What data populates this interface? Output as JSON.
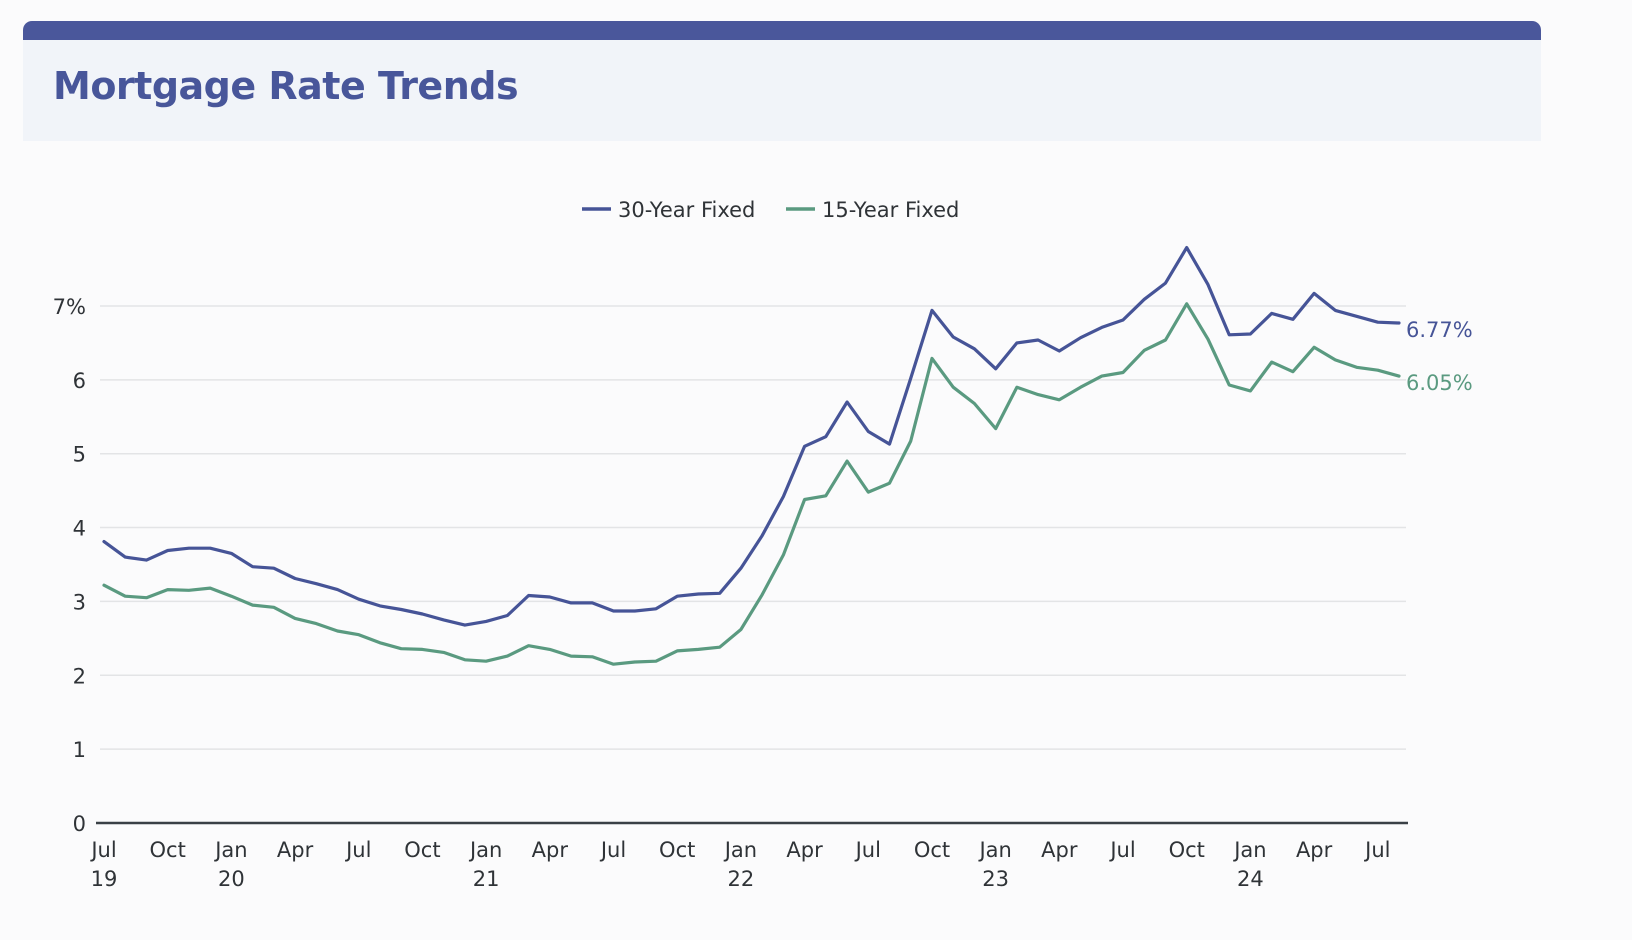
{
  "header": {
    "title": "Mortgage Rate Trends"
  },
  "colors": {
    "accent": "#4a579b",
    "series_30": "#465497",
    "series_15": "#5a9a80",
    "grid": "#e3e4e6",
    "axis": "#3a4046"
  },
  "chart_data": {
    "type": "line",
    "title": "Mortgage Rate Trends",
    "xlabel": "",
    "ylabel": "",
    "ylim": [
      0,
      7.8
    ],
    "yticks": [
      0,
      1,
      2,
      3,
      4,
      5,
      6,
      7
    ],
    "ytick_labels": [
      "0",
      "1",
      "2",
      "3",
      "4",
      "5",
      "6",
      "7%"
    ],
    "grid": true,
    "legend_position": "top-center",
    "x": [
      "2019-07",
      "2019-08",
      "2019-09",
      "2019-10",
      "2019-11",
      "2019-12",
      "2020-01",
      "2020-02",
      "2020-03",
      "2020-04",
      "2020-05",
      "2020-06",
      "2020-07",
      "2020-08",
      "2020-09",
      "2020-10",
      "2020-11",
      "2020-12",
      "2021-01",
      "2021-02",
      "2021-03",
      "2021-04",
      "2021-05",
      "2021-06",
      "2021-07",
      "2021-08",
      "2021-09",
      "2021-10",
      "2021-11",
      "2021-12",
      "2022-01",
      "2022-02",
      "2022-03",
      "2022-04",
      "2022-05",
      "2022-06",
      "2022-07",
      "2022-08",
      "2022-09",
      "2022-10",
      "2022-11",
      "2022-12",
      "2023-01",
      "2023-02",
      "2023-03",
      "2023-04",
      "2023-05",
      "2023-06",
      "2023-07",
      "2023-08",
      "2023-09",
      "2023-10",
      "2023-11",
      "2023-12",
      "2024-01",
      "2024-02",
      "2024-03",
      "2024-04",
      "2024-05",
      "2024-06",
      "2024-07",
      "2024-08"
    ],
    "xtick_labels": [
      {
        "month": "Jul",
        "year": "19"
      },
      {
        "month": "Oct",
        "year": ""
      },
      {
        "month": "Jan",
        "year": "20"
      },
      {
        "month": "Apr",
        "year": ""
      },
      {
        "month": "Jul",
        "year": ""
      },
      {
        "month": "Oct",
        "year": ""
      },
      {
        "month": "Jan",
        "year": "21"
      },
      {
        "month": "Apr",
        "year": ""
      },
      {
        "month": "Jul",
        "year": ""
      },
      {
        "month": "Oct",
        "year": ""
      },
      {
        "month": "Jan",
        "year": "22"
      },
      {
        "month": "Apr",
        "year": ""
      },
      {
        "month": "Jul",
        "year": ""
      },
      {
        "month": "Oct",
        "year": ""
      },
      {
        "month": "Jan",
        "year": "23"
      },
      {
        "month": "Apr",
        "year": ""
      },
      {
        "month": "Jul",
        "year": ""
      },
      {
        "month": "Oct",
        "year": ""
      },
      {
        "month": "Jan",
        "year": "24"
      },
      {
        "month": "Apr",
        "year": ""
      },
      {
        "month": "Jul",
        "year": ""
      }
    ],
    "series": [
      {
        "name": "30-Year Fixed",
        "end_label": "6.77%",
        "values": [
          3.81,
          3.6,
          3.56,
          3.69,
          3.72,
          3.72,
          3.65,
          3.47,
          3.45,
          3.31,
          3.24,
          3.16,
          3.03,
          2.94,
          2.89,
          2.83,
          2.75,
          2.68,
          2.73,
          2.81,
          3.08,
          3.06,
          2.98,
          2.98,
          2.87,
          2.87,
          2.9,
          3.07,
          3.1,
          3.11,
          3.45,
          3.89,
          4.42,
          5.1,
          5.23,
          5.7,
          5.3,
          5.13,
          6.02,
          6.94,
          6.58,
          6.42,
          6.15,
          6.5,
          6.54,
          6.39,
          6.57,
          6.71,
          6.81,
          7.09,
          7.31,
          7.79,
          7.29,
          6.61,
          6.62,
          6.9,
          6.82,
          7.17,
          6.94,
          6.86,
          6.78,
          6.77
        ]
      },
      {
        "name": "15-Year Fixed",
        "end_label": "6.05%",
        "values": [
          3.22,
          3.07,
          3.05,
          3.16,
          3.15,
          3.18,
          3.07,
          2.95,
          2.92,
          2.77,
          2.7,
          2.6,
          2.55,
          2.44,
          2.36,
          2.35,
          2.31,
          2.21,
          2.19,
          2.26,
          2.4,
          2.35,
          2.26,
          2.25,
          2.15,
          2.18,
          2.19,
          2.33,
          2.35,
          2.38,
          2.62,
          3.09,
          3.63,
          4.38,
          4.43,
          4.9,
          4.48,
          4.6,
          5.17,
          6.29,
          5.9,
          5.68,
          5.34,
          5.9,
          5.8,
          5.73,
          5.9,
          6.05,
          6.1,
          6.4,
          6.54,
          7.03,
          6.55,
          5.93,
          5.85,
          6.24,
          6.11,
          6.44,
          6.27,
          6.17,
          6.13,
          6.05
        ]
      }
    ]
  }
}
